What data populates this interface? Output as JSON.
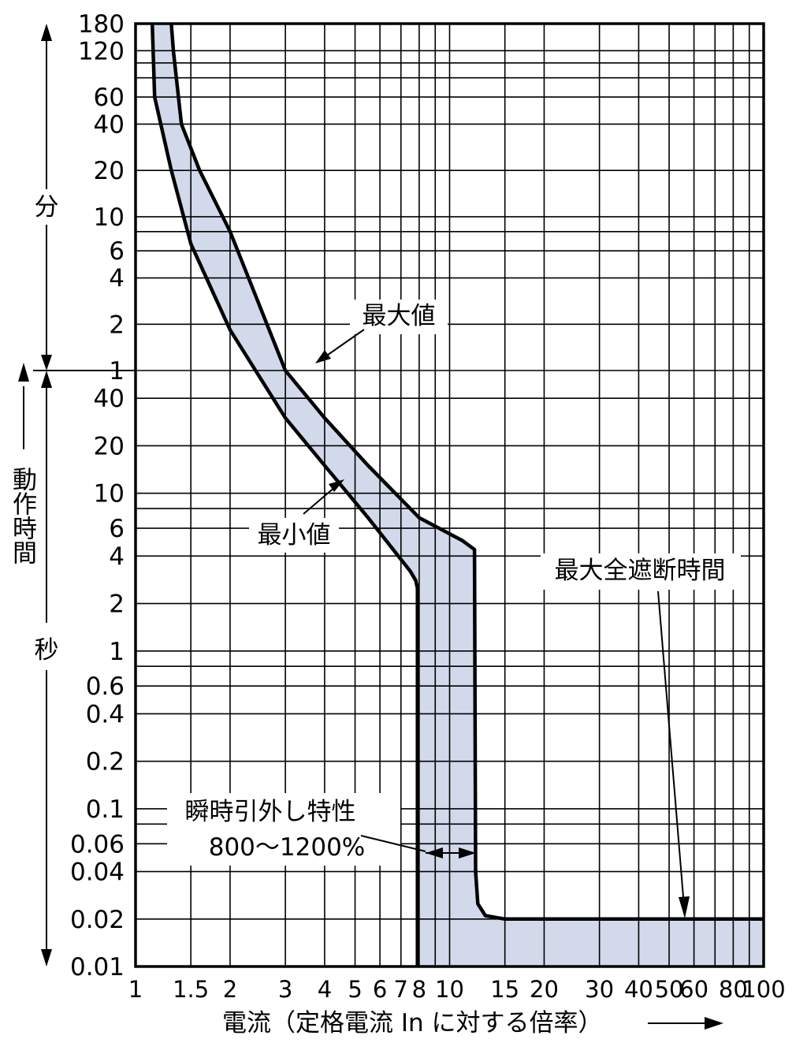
{
  "chart_data": {
    "type": "area",
    "x_scale": "log",
    "y_scale": "log",
    "xlim": [
      1,
      100
    ],
    "x_ticks": [
      {
        "v": 1,
        "label": "1"
      },
      {
        "v": 1.5,
        "label": "1.5"
      },
      {
        "v": 2,
        "label": "2"
      },
      {
        "v": 3,
        "label": "3"
      },
      {
        "v": 4,
        "label": "4"
      },
      {
        "v": 5,
        "label": "5"
      },
      {
        "v": 6,
        "label": "6"
      },
      {
        "v": 7,
        "label": "7"
      },
      {
        "v": 8,
        "label": "8"
      },
      {
        "v": 10,
        "label": "10"
      },
      {
        "v": 15,
        "label": "15"
      },
      {
        "v": 20,
        "label": "20"
      },
      {
        "v": 30,
        "label": "30"
      },
      {
        "v": 40,
        "label": "40"
      },
      {
        "v": 50,
        "label": "50"
      },
      {
        "v": 60,
        "label": "60"
      },
      {
        "v": 80,
        "label": "80"
      },
      {
        "v": 100,
        "label": "100"
      }
    ],
    "y_ticks_minutes": [
      {
        "v": 180,
        "label": "180"
      },
      {
        "v": 120,
        "label": "120"
      },
      {
        "v": 60,
        "label": "60"
      },
      {
        "v": 40,
        "label": "40"
      },
      {
        "v": 20,
        "label": "20"
      },
      {
        "v": 10,
        "label": "10"
      },
      {
        "v": 6,
        "label": "6"
      },
      {
        "v": 4,
        "label": "4"
      },
      {
        "v": 2,
        "label": "2"
      },
      {
        "v": 1,
        "label": "1"
      }
    ],
    "y_ticks_seconds": [
      {
        "v": 40,
        "label": "40"
      },
      {
        "v": 20,
        "label": "20"
      },
      {
        "v": 10,
        "label": "10"
      },
      {
        "v": 6,
        "label": "6"
      },
      {
        "v": 4,
        "label": "4"
      },
      {
        "v": 2,
        "label": "2"
      },
      {
        "v": 1,
        "label": "1"
      },
      {
        "v": 0.6,
        "label": "0.6"
      },
      {
        "v": 0.4,
        "label": "0.4"
      },
      {
        "v": 0.2,
        "label": "0.2"
      },
      {
        "v": 0.1,
        "label": "0.1"
      },
      {
        "v": 0.06,
        "label": "0.06"
      },
      {
        "v": 0.04,
        "label": "0.04"
      },
      {
        "v": 0.02,
        "label": "0.02"
      },
      {
        "v": 0.01,
        "label": "0.01"
      }
    ],
    "xlabel": "電流（定格電流 In に対する倍率）",
    "ylabel": "動作時間",
    "unit_minutes": "分",
    "unit_seconds": "秒",
    "series": [
      {
        "name": "最大値",
        "x": [
          1.3,
          1.32,
          1.4,
          1.6,
          2.0,
          3.0,
          4.0,
          5.5,
          8.0,
          11.0,
          12.0,
          12.1,
          12.3,
          13.0,
          15.0,
          100
        ],
        "y_seconds": [
          10800,
          7200,
          2400,
          1200,
          480,
          60,
          30,
          15,
          7,
          5,
          4.4,
          0.04,
          0.025,
          0.021,
          0.02,
          0.02
        ]
      },
      {
        "name": "最小値",
        "x": [
          1.13,
          1.15,
          1.3,
          1.5,
          2.0,
          3.0,
          4.0,
          5.5,
          7.5,
          7.8,
          7.9,
          7.9
        ],
        "y_seconds": [
          10800,
          3600,
          1200,
          400,
          110,
          30,
          15,
          7,
          3.2,
          2.8,
          2.5,
          0.01
        ]
      }
    ],
    "annotations": {
      "max_value": "最大値",
      "min_value": "最小値",
      "max_total_interrupt_time": "最大全遮断時間",
      "instantaneous_trip_title": "瞬時引外し特性",
      "instantaneous_trip_range": "800〜1200%"
    }
  }
}
